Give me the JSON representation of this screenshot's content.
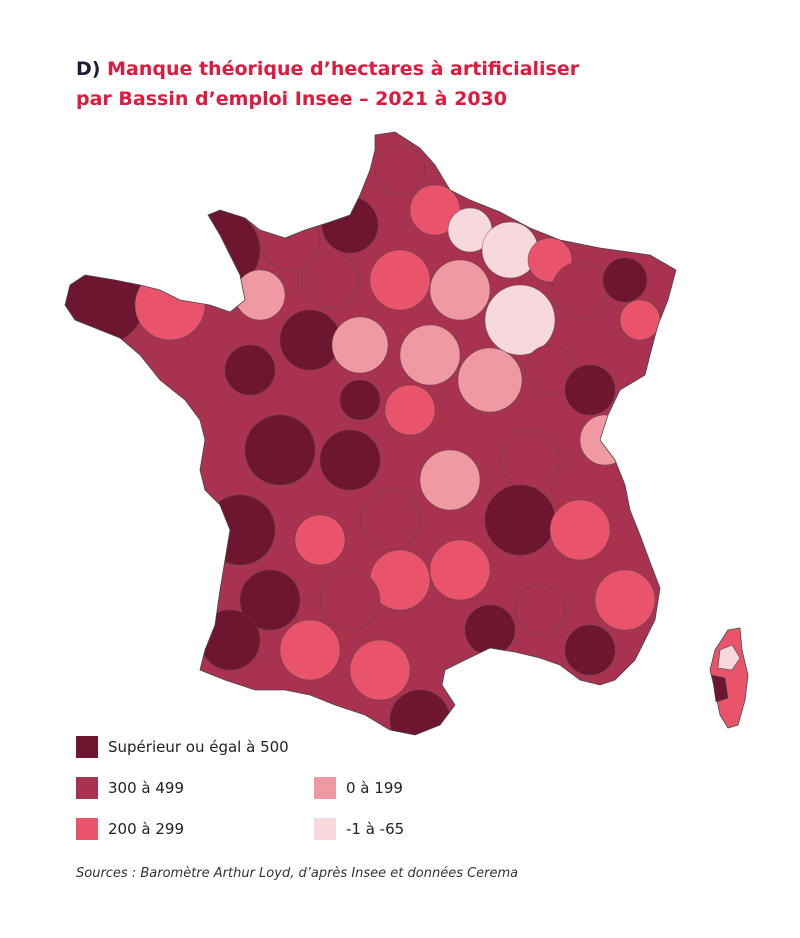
{
  "header": {
    "prefix": "D)",
    "title_line1": "Manque théorique d’hectares à artificialiser",
    "title_line2": "par Bassin d’emploi Insee – 2021 à 2030"
  },
  "colors": {
    "title": "#e01a3c",
    "prefix": "#1d1d3a",
    "class_ge500": "#6e1530",
    "class_300_499": "#a8324f",
    "class_200_299": "#e9546b",
    "class_0_199": "#ef9aa3",
    "class_neg": "#f7d8dc",
    "borders": "#4a4a4a"
  },
  "legend": [
    {
      "label": "Supérieur ou égal à 500",
      "color": "#6e1530"
    },
    {
      "label": "300 à 499",
      "color": "#a8324f"
    },
    {
      "label": "200 à 299",
      "color": "#e9546b"
    },
    {
      "label": "0 à 199",
      "color": "#ef9aa3"
    },
    {
      "label": "-1 à -65",
      "color": "#f7d8dc"
    }
  ],
  "footer": {
    "source": "Sources : Baromètre Arthur Loyd, d’après Insee et données Cerema"
  }
}
